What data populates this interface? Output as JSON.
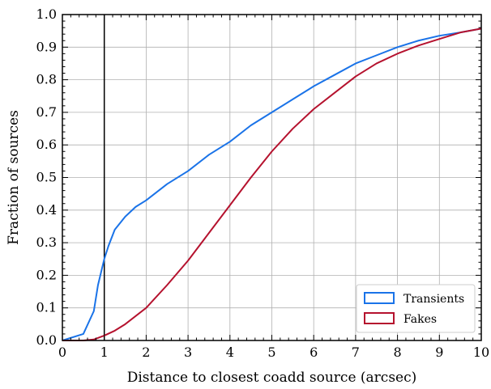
{
  "chart_data": {
    "type": "line",
    "xlabel": "Distance to closest coadd source (arcsec)",
    "ylabel": "Fraction of sources",
    "xlim": [
      0,
      10
    ],
    "ylim": [
      0,
      1.0
    ],
    "x_ticks": [
      "0",
      "1",
      "2",
      "3",
      "4",
      "5",
      "6",
      "7",
      "8",
      "9",
      "10"
    ],
    "y_ticks": [
      "0.0",
      "0.1",
      "0.2",
      "0.3",
      "0.4",
      "0.5",
      "0.6",
      "0.7",
      "0.8",
      "0.9",
      "1.0"
    ],
    "grid": true,
    "legend_position": "bottom-right",
    "reference_line_x": 1,
    "series": [
      {
        "name": "Transients",
        "color": "#1a73e8",
        "x": [
          0,
          0.5,
          0.75,
          0.85,
          1.0,
          1.1,
          1.25,
          1.5,
          1.75,
          2.0,
          2.5,
          3.0,
          3.5,
          4.0,
          4.5,
          5.0,
          5.5,
          6.0,
          6.5,
          7.0,
          7.5,
          8.0,
          8.5,
          9.0,
          9.5,
          10.0
        ],
        "y": [
          0.0,
          0.02,
          0.09,
          0.17,
          0.25,
          0.29,
          0.34,
          0.38,
          0.41,
          0.43,
          0.48,
          0.52,
          0.57,
          0.61,
          0.66,
          0.7,
          0.74,
          0.78,
          0.815,
          0.85,
          0.875,
          0.9,
          0.92,
          0.935,
          0.945,
          0.957
        ]
      },
      {
        "name": "Fakes",
        "color": "#b5122e",
        "x": [
          0,
          0.5,
          0.75,
          1.0,
          1.25,
          1.5,
          2.0,
          2.5,
          3.0,
          3.5,
          4.0,
          4.5,
          5.0,
          5.5,
          6.0,
          6.5,
          7.0,
          7.5,
          8.0,
          8.5,
          9.0,
          9.5,
          10.0
        ],
        "y": [
          0.0,
          0.0,
          0.003,
          0.015,
          0.03,
          0.05,
          0.1,
          0.17,
          0.245,
          0.33,
          0.415,
          0.5,
          0.58,
          0.65,
          0.71,
          0.76,
          0.81,
          0.85,
          0.88,
          0.905,
          0.925,
          0.945,
          0.957
        ]
      }
    ]
  }
}
